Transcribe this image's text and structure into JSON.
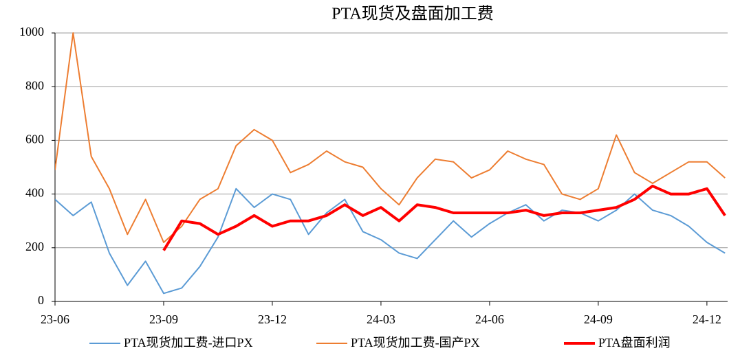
{
  "chart_data": {
    "type": "line",
    "title": "PTA现货及盘面加工费",
    "categories": [
      "23-06",
      null,
      null,
      null,
      null,
      null,
      "23-09",
      null,
      null,
      null,
      null,
      null,
      "23-12",
      null,
      null,
      null,
      null,
      null,
      "24-03",
      null,
      null,
      null,
      null,
      null,
      "24-06",
      null,
      null,
      null,
      null,
      null,
      "24-09",
      null,
      null,
      null,
      null,
      null,
      "24-12",
      null
    ],
    "series": [
      {
        "name": "PTA现货加工费-进口PX",
        "color": "#5b9bd5",
        "width": 2,
        "values": [
          380,
          320,
          370,
          180,
          60,
          150,
          30,
          50,
          130,
          240,
          420,
          350,
          400,
          380,
          250,
          330,
          380,
          260,
          230,
          180,
          160,
          230,
          300,
          240,
          290,
          330,
          360,
          300,
          340,
          330,
          300,
          340,
          400,
          340,
          320,
          280,
          220,
          180
        ]
      },
      {
        "name": "PTA现货加工费-国产PX",
        "color": "#ed7d31",
        "width": 2,
        "values": [
          490,
          1000,
          540,
          420,
          250,
          380,
          220,
          280,
          380,
          420,
          580,
          640,
          600,
          480,
          510,
          560,
          520,
          500,
          420,
          360,
          460,
          530,
          520,
          460,
          490,
          560,
          530,
          510,
          400,
          380,
          420,
          620,
          480,
          440,
          480,
          520,
          520,
          460
        ]
      },
      {
        "name": "PTA盘面利润",
        "color": "#ff0000",
        "width": 4,
        "values": [
          null,
          null,
          null,
          null,
          null,
          null,
          190,
          300,
          290,
          250,
          280,
          320,
          280,
          300,
          300,
          320,
          360,
          320,
          350,
          300,
          360,
          350,
          330,
          330,
          330,
          330,
          340,
          320,
          330,
          330,
          340,
          350,
          380,
          430,
          400,
          400,
          420,
          320
        ]
      }
    ],
    "ylim": [
      0,
      1000
    ],
    "yticks": [
      0,
      200,
      400,
      600,
      800,
      1000
    ],
    "grid": true
  }
}
